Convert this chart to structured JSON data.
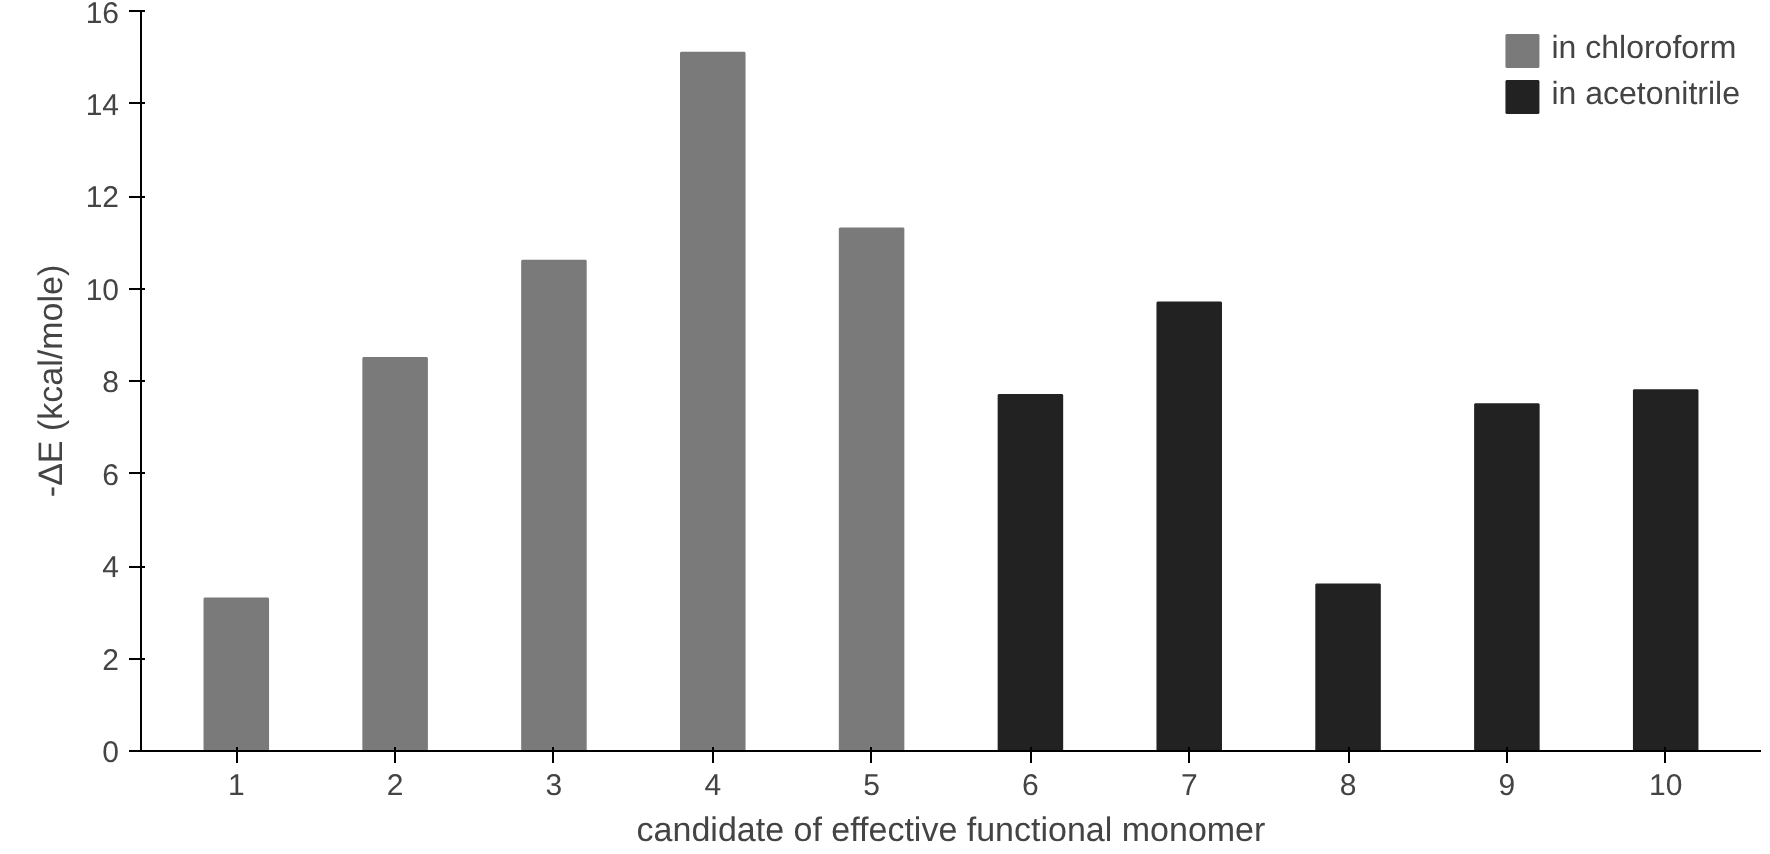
{
  "chart_data": {
    "type": "bar",
    "xlabel": "candidate of effective functional monomer",
    "ylabel": "-ΔE (kcal/mole)",
    "categories": [
      "1",
      "2",
      "3",
      "4",
      "5",
      "6",
      "7",
      "8",
      "9",
      "10"
    ],
    "series": [
      {
        "name": "in chloroform",
        "color": "#7a7a7a",
        "values": [
          3.3,
          8.5,
          10.6,
          15.1,
          11.3,
          null,
          null,
          null,
          null,
          null
        ]
      },
      {
        "name": "in acetonitrile",
        "color": "#222222",
        "values": [
          null,
          null,
          null,
          null,
          null,
          7.7,
          9.7,
          3.6,
          7.5,
          7.8
        ]
      }
    ],
    "ylim": [
      0,
      16
    ],
    "yticks": [
      0,
      2,
      4,
      6,
      8,
      10,
      12,
      14,
      16
    ],
    "grid": false,
    "legend": "top right"
  }
}
